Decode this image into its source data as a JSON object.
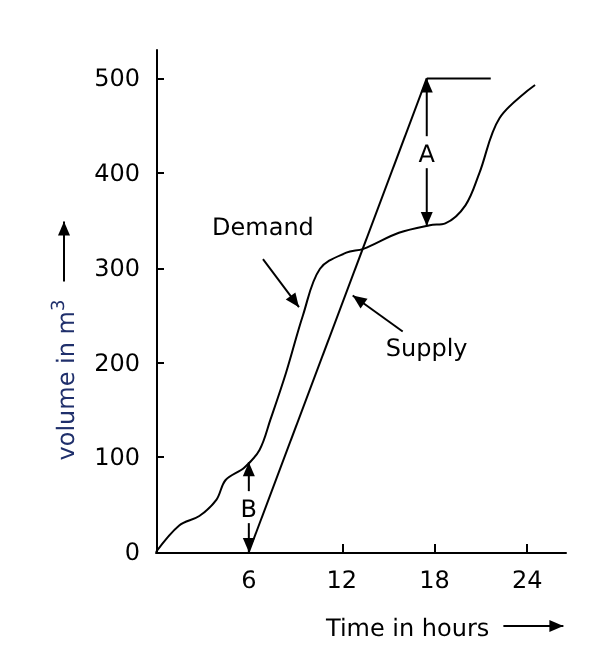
{
  "chart_data": {
    "type": "line",
    "xlabel": "Time in hours",
    "ylabel": "volume in m$^{3}$",
    "xlim": [
      0,
      26.5
    ],
    "ylim": [
      0,
      530
    ],
    "xticks": [
      6,
      12,
      18,
      24
    ],
    "yticks": [
      0,
      100,
      200,
      300,
      400,
      500
    ],
    "series": [
      {
        "name": "Demand",
        "color": "#000000",
        "x": [
          0,
          1.5,
          2.8,
          3.9,
          4.5,
          5.7,
          6.7,
          7.4,
          8.4,
          9.5,
          10.6,
          12.3,
          13.4,
          15.7,
          17.7,
          18.7,
          20,
          20.9,
          22.2,
          24.5
        ],
        "values": [
          0,
          28,
          38,
          55,
          76,
          89,
          108,
          140,
          189,
          250,
          299,
          316,
          320,
          337,
          345,
          347,
          366,
          400,
          458,
          493
        ]
      },
      {
        "name": "Supply",
        "color": "#000000",
        "x": [
          6,
          17.5
        ],
        "values": [
          0,
          500
        ]
      }
    ],
    "annotations": [
      {
        "text": "A",
        "x": 17.5,
        "y": 500
      },
      {
        "text": "B",
        "x": 6,
        "y": 0
      }
    ]
  }
}
